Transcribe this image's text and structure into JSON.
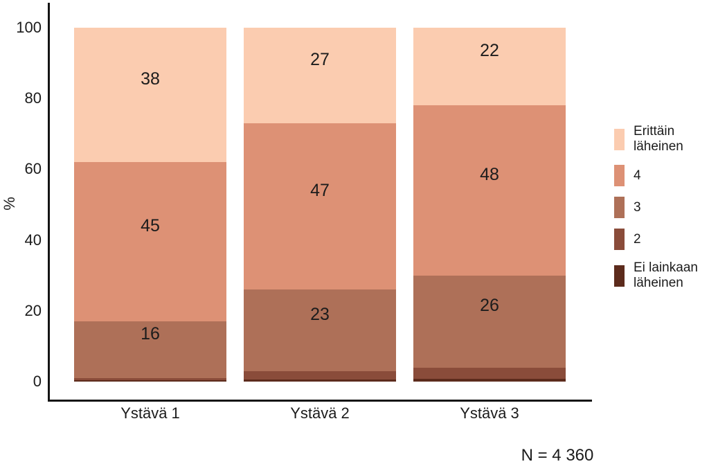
{
  "chart_data": {
    "type": "bar",
    "subtype": "stacked-percent",
    "title": "",
    "xlabel": "",
    "ylabel": "%",
    "ylim": [
      0,
      100
    ],
    "yticks": [
      0,
      20,
      40,
      60,
      80,
      100
    ],
    "grid": false,
    "legend_position": "right",
    "categories": [
      "Ystävä 1",
      "Ystävä 2",
      "Ystävä 3"
    ],
    "series": [
      {
        "name": "Erittäin läheinen",
        "legend_label": "Erittäin\nläheinen",
        "color": "#fbccb0",
        "values": [
          38,
          27,
          22
        ],
        "labeled": true
      },
      {
        "name": "4",
        "legend_label": "4",
        "color": "#dd9175",
        "values": [
          45,
          47,
          48
        ],
        "labeled": true
      },
      {
        "name": "3",
        "legend_label": "3",
        "color": "#ae7058",
        "values": [
          16,
          23,
          26
        ],
        "labeled": true
      },
      {
        "name": "2",
        "legend_label": "2",
        "color": "#8a4c3a",
        "values": [
          0.7,
          2.4,
          3.2
        ],
        "labeled": false
      },
      {
        "name": "Ei lainkaan läheinen",
        "legend_label": "Ei lainkaan\nläheinen",
        "color": "#5c2b1c",
        "values": [
          0.3,
          0.6,
          0.8
        ],
        "labeled": false
      }
    ],
    "note": "N = 4 360",
    "colors": {
      "axis": "#141414",
      "text": "#1b1b1b",
      "background": "#ffffff"
    }
  }
}
